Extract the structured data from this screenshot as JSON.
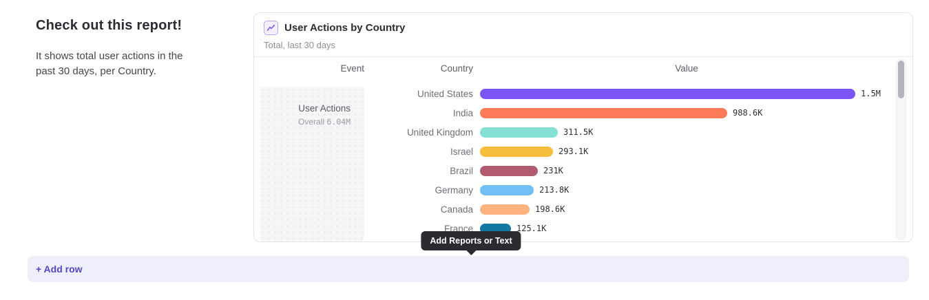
{
  "page": {
    "heading": "Check out this report!",
    "description": "It shows total user actions in the past 30 days, per Country."
  },
  "report_card": {
    "title": "User Actions by Country",
    "subtitle": "Total, last 30 days",
    "columns": {
      "event": "Event",
      "country": "Country",
      "value": "Value"
    },
    "event_cell": {
      "name": "User Actions",
      "overall_label": "Overall",
      "overall_value": "6.04M"
    },
    "accent_color": "#7c52f5"
  },
  "chart_data": {
    "type": "bar",
    "orientation": "horizontal",
    "title": "User Actions by Country",
    "subtitle": "Total, last 30 days",
    "event": "User Actions",
    "overall_total": "6.04M",
    "categories": [
      "United States",
      "India",
      "United Kingdom",
      "Israel",
      "Brazil",
      "Germany",
      "Canada",
      "France"
    ],
    "values": [
      1500000,
      988600,
      311500,
      293100,
      231000,
      213800,
      198600,
      125100
    ],
    "value_labels": [
      "1.5M",
      "988.6K",
      "311.5K",
      "293.1K",
      "231K",
      "213.8K",
      "198.6K",
      "125.1K"
    ],
    "bar_colors": [
      "#7b55f5",
      "#ff7a58",
      "#85e0d5",
      "#f7be3c",
      "#b25a70",
      "#73bef4",
      "#ffb27d",
      "#1179a4"
    ],
    "xlim": [
      0,
      1500000
    ],
    "legend": false,
    "grid": false
  },
  "tooltip": {
    "label": "Add Reports or Text"
  },
  "add_row": {
    "label": "+ Add row"
  }
}
